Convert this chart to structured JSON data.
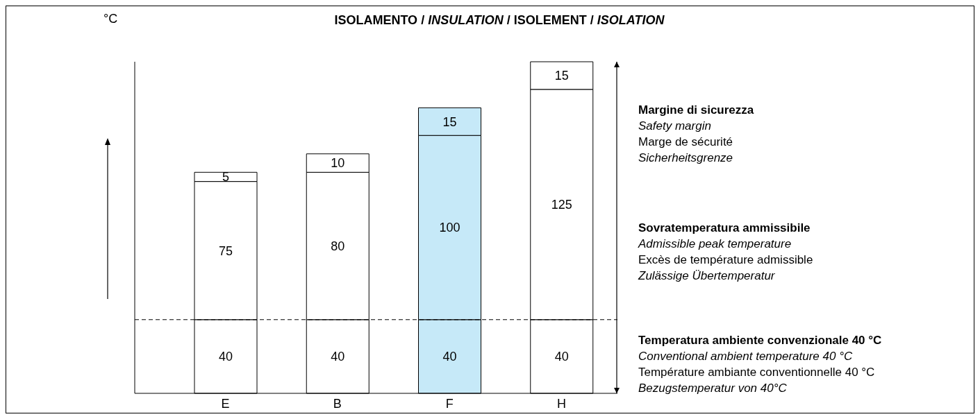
{
  "chart_data": {
    "type": "bar",
    "title": "ISOLAMENTO / INSULATION / ISOLEMENT / ISOLATION",
    "ylabel": "°C",
    "categories": [
      "E",
      "B",
      "F",
      "H"
    ],
    "stacked": true,
    "data_labels": true,
    "tick_labels": "x",
    "series": [
      {
        "colors": [
          "#ffffff",
          "#ffffff",
          "#c6e9f8",
          "#ffffff"
        ],
        "values": [
          40,
          40,
          40,
          40
        ]
      },
      {
        "colors": [
          "#ffffff",
          "#ffffff",
          "#c6e9f8",
          "#ffffff"
        ],
        "values": [
          75,
          80,
          100,
          125
        ]
      },
      {
        "colors": [
          "#ffffff",
          "#ffffff",
          "#c6e9f8",
          "#ffffff"
        ],
        "values": [
          5,
          10,
          15,
          15
        ]
      }
    ],
    "ref_lines": [
      {
        "axis": "y",
        "value": 40,
        "line_style": "dashed",
        "color": "#000000"
      }
    ],
    "annotations": [
      "Margine di sicurezza",
      "Safety margin",
      "Marge de sécurité",
      "Sicherheitsgrenze",
      "Sovratemperatura ammissibile",
      "Admissible peak temperature",
      "Excès de température admissible",
      "Zulässige Übertemperatur",
      "Temperatura ambiente convenzionale 40 °C",
      "Conventional ambient temperature 40 °C",
      "Température ambiante conventionnelle 40 °C",
      "Bezugstemperatur von 40°C"
    ]
  }
}
